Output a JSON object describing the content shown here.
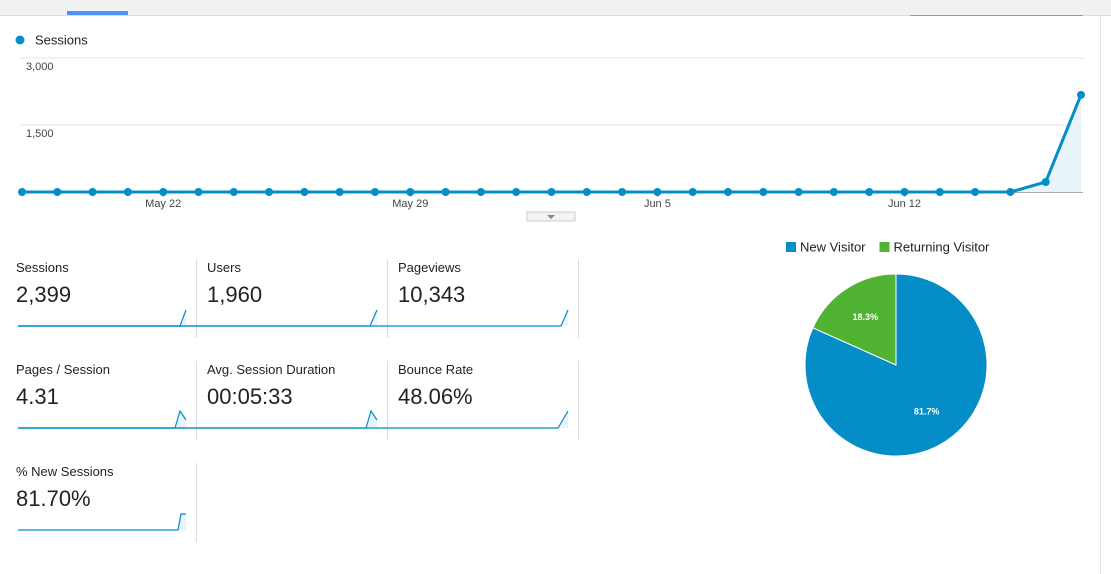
{
  "chart_data": [
    {
      "type": "line",
      "categories": [
        null,
        null,
        null,
        null,
        "May 22",
        null,
        null,
        null,
        null,
        null,
        null,
        "May 29",
        null,
        null,
        null,
        null,
        null,
        null,
        "Jun 5",
        null,
        null,
        null,
        null,
        null,
        null,
        "Jun 12",
        null,
        null,
        null,
        null,
        null
      ],
      "series": [
        {
          "name": "Sessions",
          "color": "#058dc7",
          "values": [
            0,
            0,
            0,
            0,
            0,
            0,
            0,
            0,
            0,
            0,
            0,
            0,
            0,
            0,
            0,
            0,
            0,
            0,
            0,
            0,
            0,
            0,
            0,
            0,
            0,
            0,
            0,
            0,
            0,
            224,
            2175
          ]
        }
      ],
      "ylim": [
        0,
        3000
      ],
      "yticks": [
        {
          "value": 1500,
          "label": "1,500"
        },
        {
          "value": 3000,
          "label": "3,000"
        }
      ],
      "grid": true
    },
    {
      "type": "pie",
      "categories": [
        "New Visitor",
        "Returning Visitor"
      ],
      "values": [
        81.7,
        18.3
      ],
      "value_labels": [
        "81.7%",
        "18.3%"
      ],
      "colors": [
        "#058dc7",
        "#50b432"
      ]
    }
  ],
  "metrics": [
    {
      "label": "Sessions",
      "value": "2,399"
    },
    {
      "label": "Users",
      "value": "1,960"
    },
    {
      "label": "Pageviews",
      "value": "10,343"
    },
    {
      "label": "Pages / Session",
      "value": "4.31"
    },
    {
      "label": "Avg. Session Duration",
      "value": "00:05:33"
    },
    {
      "label": "Bounce Rate",
      "value": "48.06%"
    },
    {
      "label": "% New Sessions",
      "value": "81.70%"
    }
  ]
}
